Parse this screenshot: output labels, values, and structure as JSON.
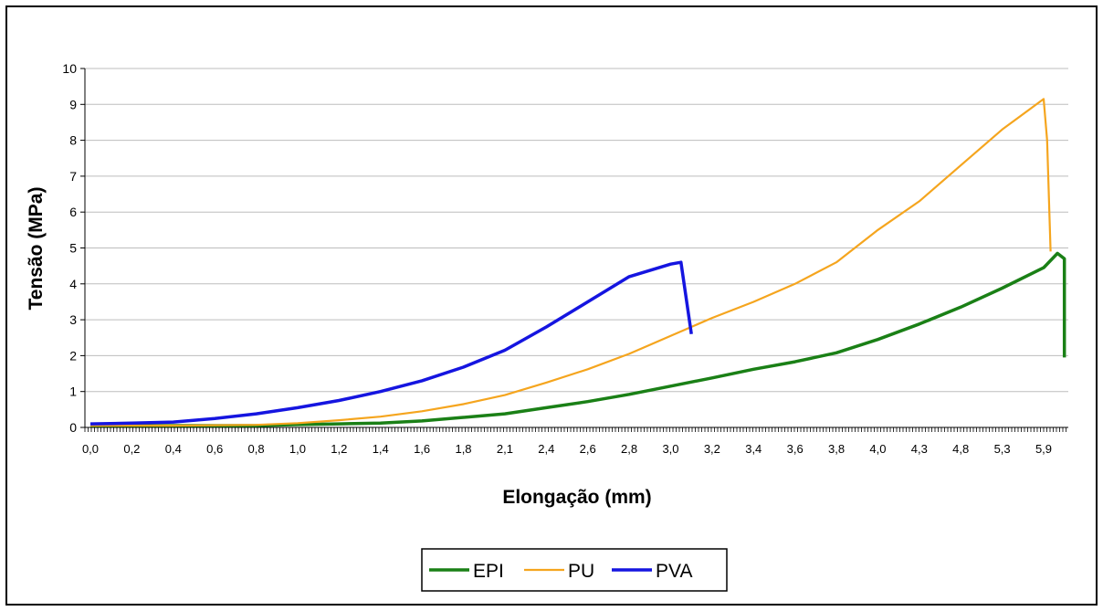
{
  "chart_data": {
    "type": "line",
    "title": "",
    "xlabel": "Elongação (mm)",
    "ylabel": "Tensão (MPa)",
    "ylim": [
      0,
      10
    ],
    "yticks": [
      "0",
      "1",
      "2",
      "3",
      "4",
      "5",
      "6",
      "7",
      "8",
      "9",
      "10"
    ],
    "xticks": [
      "0,0",
      "0,2",
      "0,4",
      "0,6",
      "0,8",
      "1,0",
      "1,2",
      "1,4",
      "1,6",
      "1,8",
      "2,1",
      "2,4",
      "2,6",
      "2,8",
      "3,0",
      "3,2",
      "3,4",
      "3,6",
      "3,8",
      "4,0",
      "4,3",
      "4,8",
      "5,3",
      "5,9"
    ],
    "grid": "horizontal",
    "legend_position": "bottom",
    "series": [
      {
        "name": "EPI",
        "color": "#1a8016",
        "x": [
          0.0,
          0.4,
          0.8,
          1.0,
          1.2,
          1.4,
          1.6,
          1.8,
          2.1,
          2.4,
          2.6,
          2.8,
          3.0,
          3.2,
          3.4,
          3.6,
          3.8,
          4.0,
          4.3,
          4.8,
          5.3,
          5.9,
          6.1,
          6.2,
          6.2
        ],
        "y": [
          0.05,
          0.05,
          0.05,
          0.08,
          0.1,
          0.12,
          0.18,
          0.28,
          0.38,
          0.55,
          0.72,
          0.92,
          1.15,
          1.38,
          1.62,
          1.83,
          2.08,
          2.45,
          2.88,
          3.35,
          3.88,
          4.45,
          4.85,
          4.7,
          1.95
        ]
      },
      {
        "name": "PU",
        "color": "#f5a51e",
        "x": [
          0.0,
          0.4,
          0.8,
          1.0,
          1.2,
          1.4,
          1.6,
          1.8,
          2.1,
          2.4,
          2.6,
          2.8,
          3.0,
          3.2,
          3.4,
          3.6,
          3.8,
          4.0,
          4.3,
          4.8,
          5.3,
          5.9,
          5.95,
          6.0
        ],
        "y": [
          0.05,
          0.05,
          0.07,
          0.12,
          0.2,
          0.3,
          0.45,
          0.65,
          0.9,
          1.25,
          1.62,
          2.05,
          2.55,
          3.05,
          3.5,
          4.0,
          4.6,
          5.5,
          6.3,
          7.3,
          8.3,
          9.15,
          8.0,
          4.9
        ]
      },
      {
        "name": "PVA",
        "color": "#1515e0",
        "x": [
          0.0,
          0.2,
          0.4,
          0.6,
          0.8,
          1.0,
          1.2,
          1.4,
          1.6,
          1.8,
          2.1,
          2.4,
          2.6,
          2.8,
          3.0,
          3.05,
          3.1
        ],
        "y": [
          0.1,
          0.12,
          0.15,
          0.25,
          0.38,
          0.55,
          0.75,
          1.0,
          1.3,
          1.68,
          2.15,
          2.8,
          3.5,
          4.2,
          4.55,
          4.6,
          2.6
        ]
      }
    ]
  }
}
